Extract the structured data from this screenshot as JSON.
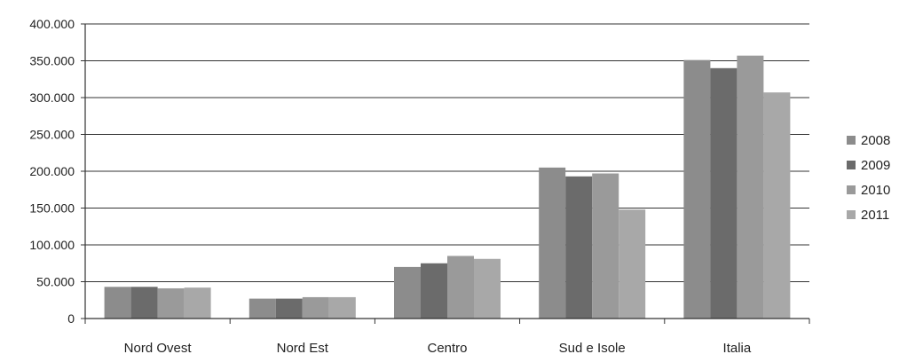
{
  "chart_data": {
    "type": "bar",
    "title": "",
    "xlabel": "",
    "ylabel": "",
    "categories": [
      "Nord Ovest",
      "Nord Est",
      "Centro",
      "Sud e Isole",
      "Italia"
    ],
    "series": [
      {
        "name": "2008",
        "color": "#8c8c8c",
        "values": [
          43000,
          27000,
          70000,
          205000,
          351000
        ]
      },
      {
        "name": "2009",
        "color": "#6b6b6b",
        "values": [
          43000,
          27000,
          75000,
          193000,
          340000
        ]
      },
      {
        "name": "2010",
        "color": "#9a9a9a",
        "values": [
          41000,
          29000,
          85000,
          197000,
          357000
        ]
      },
      {
        "name": "2011",
        "color": "#a8a8a8",
        "values": [
          42000,
          29000,
          81000,
          148000,
          307000
        ]
      }
    ],
    "ylim": [
      0,
      400000
    ],
    "yticks": [
      {
        "value": 0,
        "label": "0"
      },
      {
        "value": 50000,
        "label": "50.000"
      },
      {
        "value": 100000,
        "label": "100.000"
      },
      {
        "value": 150000,
        "label": "150.000"
      },
      {
        "value": 200000,
        "label": "200.000"
      },
      {
        "value": 250000,
        "label": "250.000"
      },
      {
        "value": 300000,
        "label": "300.000"
      },
      {
        "value": 350000,
        "label": "350.000"
      },
      {
        "value": 400000,
        "label": "400.000"
      }
    ],
    "grid": true,
    "legend": "right"
  }
}
